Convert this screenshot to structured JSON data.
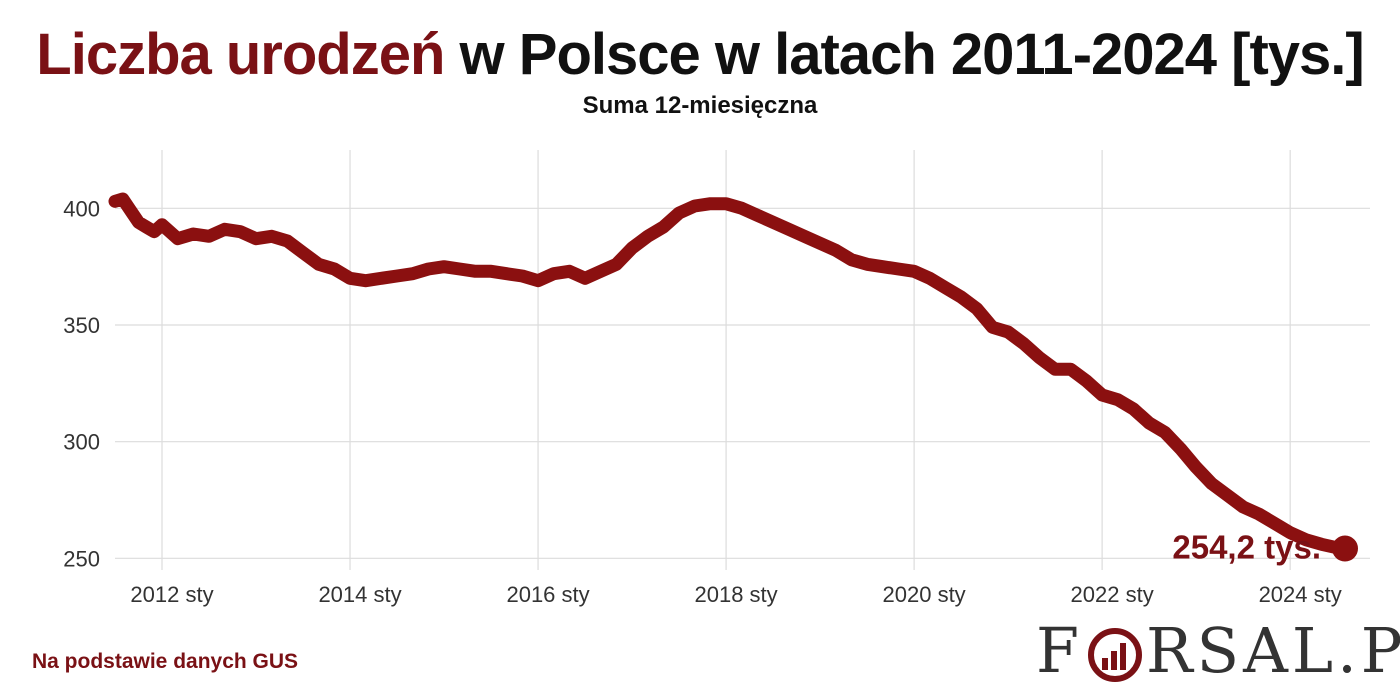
{
  "header": {
    "title_highlight": "Liczba urodzeń",
    "title_rest": " w Polsce w latach 2011-2024 [tys.]",
    "subtitle": "Suma 12-miesięczna"
  },
  "footer": {
    "source": "Na podstawie danych GUS",
    "brand_first": "F",
    "brand_rest": "RSAL.PL",
    "brand_mark_icon": "logo-o-bar-chart-icon"
  },
  "colors": {
    "accent": "#7a1115",
    "line": "#8b1010",
    "grid": "#dcdcdc",
    "text": "#111111"
  },
  "chart_data": {
    "type": "line",
    "title": "Liczba urodzeń w Polsce w latach 2011-2024 [tys.]",
    "subtitle": "Suma 12-miesięczna",
    "xlabel": "",
    "ylabel": "",
    "x_range": [
      "2011-07",
      "2024-08"
    ],
    "ylim": [
      245,
      425
    ],
    "yticks": [
      250,
      300,
      350,
      400
    ],
    "ytick_labels": [
      "250",
      "300",
      "350",
      "400"
    ],
    "xticks": [
      "2012-01",
      "2014-01",
      "2016-01",
      "2018-01",
      "2020-01",
      "2022-01",
      "2024-01"
    ],
    "xtick_labels": [
      "2012 sty",
      "2014 sty",
      "2016 sty",
      "2018 sty",
      "2020 sty",
      "2022 sty",
      "2024 sty"
    ],
    "grid": true,
    "last_point_label": "254,2 tys.",
    "series": [
      {
        "x": [
          "2011-07",
          "2011-08",
          "2011-09",
          "2011-10",
          "2011-11",
          "2011-12",
          "2012-01",
          "2012-03",
          "2012-05",
          "2012-07",
          "2012-09",
          "2012-11",
          "2013-01",
          "2013-03",
          "2013-05",
          "2013-07",
          "2013-09",
          "2013-11",
          "2014-01",
          "2014-03",
          "2014-05",
          "2014-07",
          "2014-09",
          "2014-11",
          "2015-01",
          "2015-03",
          "2015-05",
          "2015-07",
          "2015-09",
          "2015-11",
          "2016-01",
          "2016-03",
          "2016-05",
          "2016-07",
          "2016-09",
          "2016-11",
          "2017-01",
          "2017-03",
          "2017-05",
          "2017-07",
          "2017-09",
          "2017-11",
          "2018-01",
          "2018-03",
          "2018-05",
          "2018-07",
          "2018-09",
          "2018-11",
          "2019-01",
          "2019-03",
          "2019-05",
          "2019-07",
          "2019-09",
          "2019-11",
          "2020-01",
          "2020-03",
          "2020-05",
          "2020-07",
          "2020-09",
          "2020-11",
          "2021-01",
          "2021-03",
          "2021-05",
          "2021-07",
          "2021-09",
          "2021-11",
          "2022-01",
          "2022-03",
          "2022-05",
          "2022-07",
          "2022-09",
          "2022-11",
          "2023-01",
          "2023-03",
          "2023-05",
          "2023-07",
          "2023-09",
          "2023-11",
          "2024-01",
          "2024-03",
          "2024-05",
          "2024-07",
          "2024-08"
        ],
        "values": [
          403,
          404,
          399,
          394,
          392,
          390,
          393,
          387,
          389,
          388,
          391,
          390,
          387,
          388,
          386,
          381,
          376,
          374,
          370,
          369,
          370,
          371,
          372,
          374,
          375,
          374,
          373,
          373,
          372,
          371,
          369,
          372,
          373,
          370,
          373,
          376,
          383,
          388,
          392,
          398,
          401,
          402,
          402,
          400,
          397,
          394,
          391,
          388,
          385,
          382,
          378,
          376,
          375,
          374,
          373,
          370,
          366,
          362,
          357,
          349,
          347,
          342,
          336,
          331,
          331,
          326,
          320,
          318,
          314,
          308,
          304,
          297,
          289,
          282,
          277,
          272,
          269,
          265,
          261,
          258,
          256,
          254.5,
          254.2
        ]
      }
    ]
  }
}
